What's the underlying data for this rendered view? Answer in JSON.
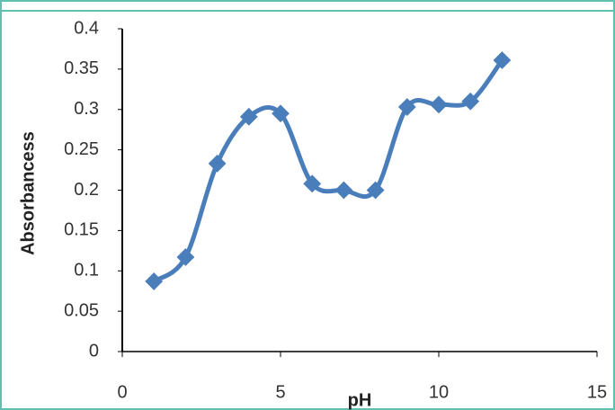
{
  "chart_data": {
    "type": "line",
    "x_label": "pH",
    "y_label": "Absorbancess",
    "series": [
      {
        "name": "Absorbance",
        "color": "#4a7ebb",
        "x": [
          1,
          2,
          3,
          4,
          5,
          6,
          7,
          8,
          9,
          10,
          11,
          12
        ],
        "values": [
          0.087,
          0.117,
          0.233,
          0.291,
          0.295,
          0.208,
          0.2,
          0.2,
          0.303,
          0.306,
          0.31,
          0.361
        ]
      }
    ],
    "xlim": [
      0,
      15
    ],
    "xticks": [
      0,
      5,
      10,
      15
    ],
    "ylim": [
      0,
      0.4
    ],
    "yticks": [
      0,
      0.05,
      0.1,
      0.15,
      0.2,
      0.25,
      0.3,
      0.35,
      0.4
    ],
    "grid": false,
    "smooth": true
  }
}
